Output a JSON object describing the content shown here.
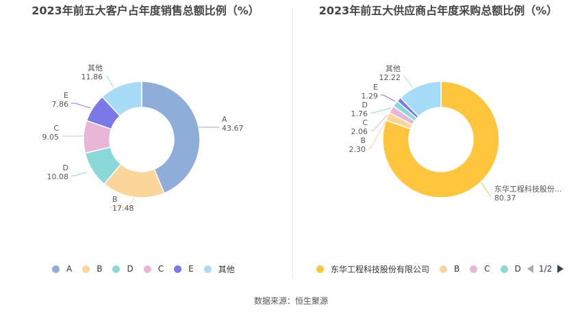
{
  "chart_data": [
    {
      "type": "pie",
      "title": "2023年前五大客户占年度销售总额比例（%）",
      "categories": [
        "A",
        "B",
        "D",
        "C",
        "E",
        "其他"
      ],
      "values": [
        43.67,
        17.48,
        10.08,
        9.05,
        7.86,
        11.86
      ],
      "value_labels": [
        "43.67",
        "17.48",
        "10.08",
        "9.05",
        "7.86",
        "11.86"
      ],
      "colors": [
        "#8fadd9",
        "#fcd59b",
        "#8ad8d8",
        "#e8b7d7",
        "#7b78e8",
        "#a6dcf5"
      ],
      "legend": [
        "A",
        "B",
        "D",
        "C",
        "E",
        "其他"
      ],
      "legend_position": "bottom"
    },
    {
      "type": "pie",
      "title": "2023年前五大供应商占年度采购总额比例（%）",
      "categories": [
        "东华工程科技股份...",
        "B",
        "C",
        "D",
        "E",
        "其他"
      ],
      "values": [
        80.37,
        2.3,
        2.06,
        1.76,
        1.29,
        12.22
      ],
      "value_labels": [
        "80.37",
        "2.30",
        "2.06",
        "1.76",
        "1.29",
        "12.22"
      ],
      "colors": [
        "#ffc53d",
        "#fcd59b",
        "#e8b7d7",
        "#8ad8d8",
        "#7b78e8",
        "#a6dcf5"
      ],
      "legend": [
        "东华工程科技股份有限公司",
        "B",
        "C",
        "D"
      ],
      "legend_position": "bottom",
      "legend_page": "1/2"
    }
  ],
  "source_text": "数据来源：恒生聚源"
}
